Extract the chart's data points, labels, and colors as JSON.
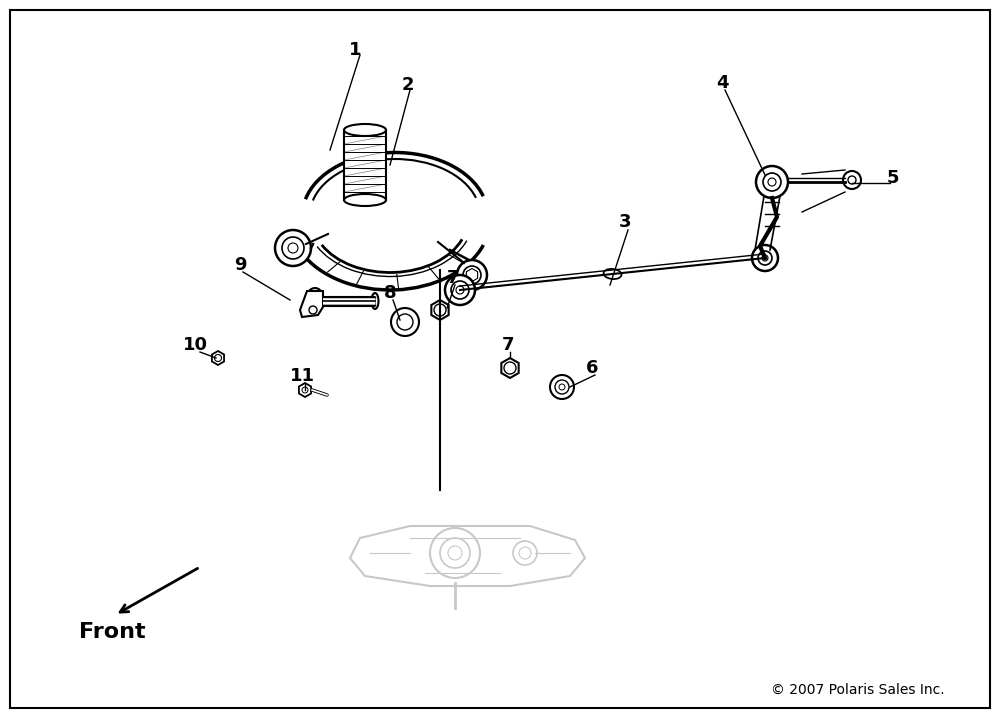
{
  "background_color": "#ffffff",
  "border_color": "#000000",
  "copyright": "© 2007 Polaris Sales Inc.",
  "front_label": "Front",
  "line_color": "#000000",
  "ghost_color": "#c8c8c8",
  "ghost_color2": "#b0b0b0",
  "label_fontsize": 13,
  "copyright_fontsize": 10,
  "front_fontsize": 16
}
